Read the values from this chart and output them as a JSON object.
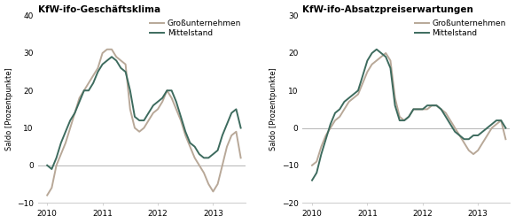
{
  "title1": "KfW-ifo-Geschäftsklima",
  "title2": "KfW-ifo-Absatzpreiserwartungen",
  "ylabel": "Saldo [Prozentpunkte]",
  "color_gross": "#b8a898",
  "color_mittel": "#3d6b5e",
  "legend_gross": "Großunternehmen",
  "legend_mittel": "Mittelstand",
  "ylim1": [
    -10,
    40
  ],
  "ylim2": [
    -20,
    30
  ],
  "yticks1": [
    -10,
    0,
    10,
    20,
    30,
    40
  ],
  "yticks2": [
    -20,
    -10,
    0,
    10,
    20,
    30
  ],
  "x_months": [
    2010.0,
    2010.083,
    2010.167,
    2010.25,
    2010.333,
    2010.417,
    2010.5,
    2010.583,
    2010.667,
    2010.75,
    2010.833,
    2010.917,
    2011.0,
    2011.083,
    2011.167,
    2011.25,
    2011.333,
    2011.417,
    2011.5,
    2011.583,
    2011.667,
    2011.75,
    2011.833,
    2011.917,
    2012.0,
    2012.083,
    2012.167,
    2012.25,
    2012.333,
    2012.417,
    2012.5,
    2012.583,
    2012.667,
    2012.75,
    2012.833,
    2012.917,
    2013.0,
    2013.083,
    2013.167,
    2013.25,
    2013.333,
    2013.417,
    2013.5
  ],
  "chart1_gross": [
    -8,
    -6,
    0,
    3,
    6,
    10,
    14,
    18,
    20,
    22,
    24,
    26,
    30,
    31,
    31,
    29,
    28,
    27,
    15,
    10,
    9,
    10,
    12,
    14,
    15,
    17,
    20,
    18,
    15,
    12,
    8,
    5,
    2,
    0,
    -2,
    -5,
    -7,
    -5,
    0,
    5,
    8,
    9,
    2
  ],
  "chart1_mittel": [
    0,
    -1,
    2,
    6,
    9,
    12,
    14,
    17,
    20,
    20,
    22,
    25,
    27,
    28,
    29,
    28,
    26,
    25,
    20,
    13,
    12,
    12,
    14,
    16,
    17,
    18,
    20,
    20,
    17,
    13,
    9,
    6,
    5,
    3,
    2,
    2,
    3,
    4,
    8,
    11,
    14,
    15,
    10
  ],
  "chart2_gross": [
    -10,
    -9,
    -5,
    -2,
    0,
    2,
    3,
    5,
    7,
    8,
    9,
    12,
    15,
    17,
    18,
    19,
    20,
    18,
    8,
    3,
    2,
    3,
    5,
    5,
    5,
    5,
    6,
    6,
    5,
    4,
    2,
    0,
    -2,
    -4,
    -6,
    -7,
    -6,
    -4,
    -2,
    0,
    1,
    2,
    -3
  ],
  "chart2_mittel": [
    -14,
    -12,
    -7,
    -3,
    1,
    4,
    5,
    7,
    8,
    9,
    10,
    14,
    18,
    20,
    21,
    20,
    19,
    16,
    6,
    2,
    2,
    3,
    5,
    5,
    5,
    6,
    6,
    6,
    5,
    3,
    1,
    -1,
    -2,
    -3,
    -3,
    -2,
    -2,
    -1,
    0,
    1,
    2,
    2,
    0
  ],
  "xtick_positions": [
    2010,
    2011,
    2012,
    2013
  ],
  "xtick_labels": [
    "2010",
    "2011",
    "2012",
    "2013"
  ],
  "xlim": [
    2009.83,
    2013.58
  ],
  "background_color": "#ffffff",
  "plot_bg": "#ffffff",
  "linewidth": 1.4,
  "zero_line_color": "#bbbbbb",
  "spine_color": "#cccccc",
  "tick_color": "#cccccc"
}
